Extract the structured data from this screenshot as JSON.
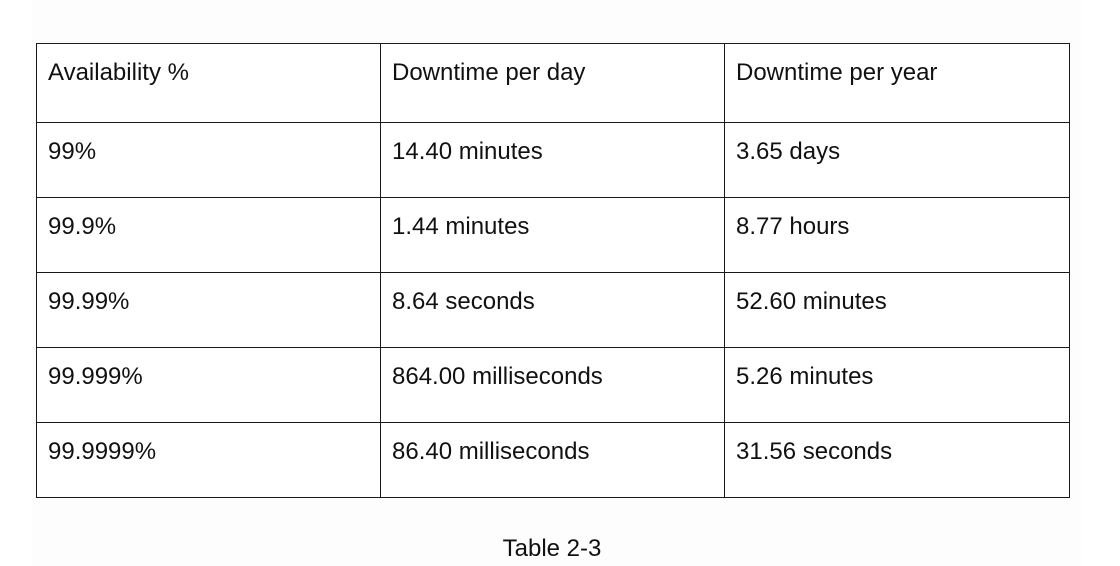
{
  "table": {
    "headers": [
      "Availability %",
      "Downtime per day",
      "Downtime per year"
    ],
    "rows": [
      [
        "99%",
        "14.40 minutes",
        "3.65 days"
      ],
      [
        "99.9%",
        "1.44 minutes",
        "8.77 hours"
      ],
      [
        "99.99%",
        "8.64 seconds",
        "52.60 minutes"
      ],
      [
        "99.999%",
        "864.00 milliseconds",
        "5.26 minutes"
      ],
      [
        "99.9999%",
        "86.40 milliseconds",
        "31.56 seconds"
      ]
    ]
  },
  "caption": "Table 2-3"
}
